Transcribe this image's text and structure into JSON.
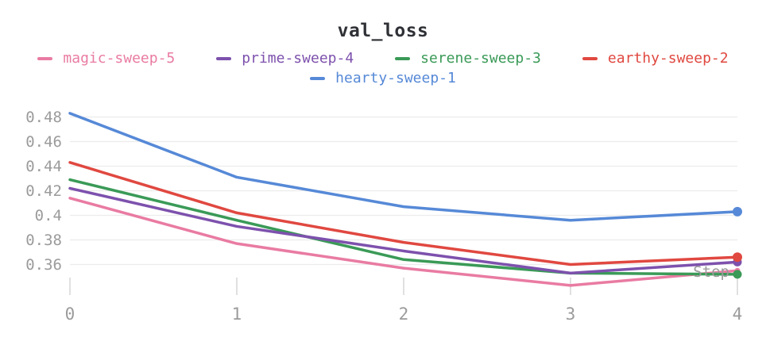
{
  "header": {
    "title": "val_loss"
  },
  "colors": {
    "grid": "#ececec",
    "tick_mark": "#e0e0e0",
    "axis_text": "#9b9b9b",
    "title_text": "#2f3136"
  },
  "chart_data": {
    "type": "line",
    "title": "val_loss",
    "xlabel": "Step",
    "ylabel": "",
    "x": [
      0,
      1,
      2,
      3,
      4
    ],
    "xtick_labels": [
      "0",
      "1",
      "2",
      "3",
      "4"
    ],
    "ytick_values": [
      0.48,
      0.46,
      0.44,
      0.42,
      0.4,
      0.38,
      0.36
    ],
    "ytick_labels": [
      "0.48",
      "0.46",
      "0.44",
      "0.42",
      "0.4",
      "0.38",
      "0.36"
    ],
    "ylim": [
      0.335,
      0.49
    ],
    "grid": true,
    "legend_position": "top",
    "end_markers": true,
    "series": [
      {
        "name": "magic-sweep-5",
        "color": "#e97ba2",
        "values": [
          0.414,
          0.377,
          0.357,
          0.343,
          0.355
        ]
      },
      {
        "name": "prime-sweep-4",
        "color": "#7d51ad",
        "values": [
          0.422,
          0.391,
          0.371,
          0.353,
          0.362
        ]
      },
      {
        "name": "serene-sweep-3",
        "color": "#3a9a57",
        "values": [
          0.429,
          0.396,
          0.364,
          0.353,
          0.352
        ]
      },
      {
        "name": "earthy-sweep-2",
        "color": "#e04840",
        "values": [
          0.443,
          0.402,
          0.378,
          0.36,
          0.366
        ]
      },
      {
        "name": "hearty-sweep-1",
        "color": "#5689d7",
        "values": [
          0.483,
          0.431,
          0.407,
          0.396,
          0.403
        ]
      }
    ]
  }
}
